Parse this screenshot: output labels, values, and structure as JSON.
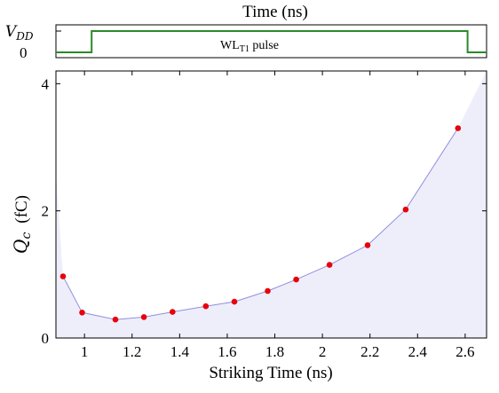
{
  "pulse_panel": {
    "title": "Time (ns)",
    "y_high_label": "V",
    "y_high_sub": "DD",
    "y_low_label": "0",
    "pulse_label_main": "WL",
    "pulse_label_sub": "T1",
    "pulse_label_rest": " pulse",
    "signal": {
      "start_x": 0.88,
      "rise_x": 1.03,
      "fall_x": 2.61,
      "end_x": 2.69,
      "color": "#2a8a2a"
    }
  },
  "chart_data": {
    "type": "scatter",
    "xlabel": "Striking Time (ns)",
    "ylabel_main": "Q",
    "ylabel_sub": "c",
    "ylabel_unit": "(fC)",
    "xlim": [
      0.88,
      2.69
    ],
    "ylim": [
      0,
      4.2
    ],
    "x_ticks": [
      1,
      1.2,
      1.4,
      1.6,
      1.8,
      2,
      2.2,
      2.4,
      2.6
    ],
    "x_tick_labels": [
      "1",
      "1.2",
      "1.4",
      "1.6",
      "1.8",
      "2",
      "2.2",
      "2.4",
      "2.6"
    ],
    "y_ticks": [
      0,
      2,
      4
    ],
    "y_tick_labels": [
      "0",
      "2",
      "4"
    ],
    "points": [
      {
        "x": 0.91,
        "y": 0.97
      },
      {
        "x": 0.99,
        "y": 0.4
      },
      {
        "x": 1.13,
        "y": 0.29
      },
      {
        "x": 1.25,
        "y": 0.33
      },
      {
        "x": 1.37,
        "y": 0.41
      },
      {
        "x": 1.51,
        "y": 0.5
      },
      {
        "x": 1.63,
        "y": 0.57
      },
      {
        "x": 1.77,
        "y": 0.74
      },
      {
        "x": 1.89,
        "y": 0.92
      },
      {
        "x": 2.03,
        "y": 1.15
      },
      {
        "x": 2.19,
        "y": 1.46
      },
      {
        "x": 2.35,
        "y": 2.02
      },
      {
        "x": 2.57,
        "y": 3.3
      }
    ],
    "region_boundary": [
      {
        "x": 0.88,
        "y": 2.6
      },
      {
        "x": 0.91,
        "y": 0.97
      },
      {
        "x": 0.99,
        "y": 0.4
      },
      {
        "x": 1.13,
        "y": 0.29
      },
      {
        "x": 1.25,
        "y": 0.33
      },
      {
        "x": 1.37,
        "y": 0.41
      },
      {
        "x": 1.51,
        "y": 0.5
      },
      {
        "x": 1.63,
        "y": 0.57
      },
      {
        "x": 1.77,
        "y": 0.74
      },
      {
        "x": 1.89,
        "y": 0.92
      },
      {
        "x": 2.03,
        "y": 1.15
      },
      {
        "x": 2.19,
        "y": 1.46
      },
      {
        "x": 2.35,
        "y": 2.02
      },
      {
        "x": 2.57,
        "y": 3.3
      },
      {
        "x": 2.69,
        "y": 4.2
      }
    ],
    "colors": {
      "points": "#e8000b",
      "line": "#8f8fe0",
      "region": "#eeeefb"
    },
    "grid": false
  }
}
